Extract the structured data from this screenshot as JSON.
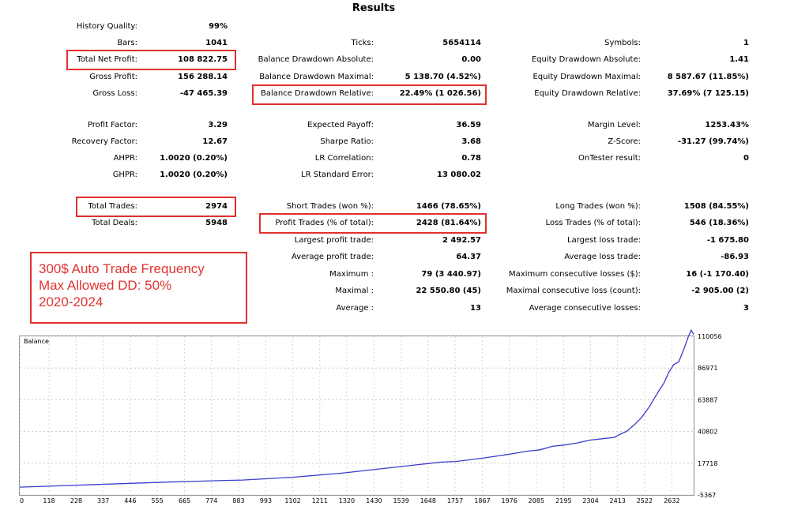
{
  "title": "Results",
  "col1": [
    {
      "label": "History Quality:",
      "value": "99%"
    },
    {
      "label": "Bars:",
      "value": "1041"
    },
    {
      "label": "Total Net Profit:",
      "value": "108 822.75"
    },
    {
      "label": "Gross Profit:",
      "value": "156 288.14"
    },
    {
      "label": "Gross Loss:",
      "value": "-47 465.39"
    },
    {
      "label": "Profit Factor:",
      "value": "3.29"
    },
    {
      "label": "Recovery Factor:",
      "value": "12.67"
    },
    {
      "label": "AHPR:",
      "value": "1.0020 (0.20%)"
    },
    {
      "label": "GHPR:",
      "value": "1.0020 (0.20%)"
    },
    {
      "label": "Total Trades:",
      "value": "2974"
    },
    {
      "label": "Total Deals:",
      "value": "5948"
    }
  ],
  "col2": [
    {
      "label": "Ticks:",
      "value": "5654114"
    },
    {
      "label": "Balance Drawdown Absolute:",
      "value": "0.00"
    },
    {
      "label": "Balance Drawdown Maximal:",
      "value": "5 138.70 (4.52%)"
    },
    {
      "label": "Balance Drawdown Relative:",
      "value": "22.49% (1 026.56)"
    },
    {
      "label": "Expected Payoff:",
      "value": "36.59"
    },
    {
      "label": "Sharpe Ratio:",
      "value": "3.68"
    },
    {
      "label": "LR Correlation:",
      "value": "0.78"
    },
    {
      "label": "LR Standard Error:",
      "value": "13 080.02"
    },
    {
      "label": "Short Trades (won %):",
      "value": "1466 (78.65%)"
    },
    {
      "label": "Profit Trades (% of total):",
      "value": "2428 (81.64%)"
    },
    {
      "label": "Largest profit trade:",
      "value": "2 492.57"
    },
    {
      "label": "Average profit trade:",
      "value": "64.37"
    },
    {
      "label": "Maximum :",
      "value": "79 (3 440.97)"
    },
    {
      "label": "Maximal :",
      "value": "22 550.80 (45)"
    },
    {
      "label": "Average :",
      "value": "13"
    }
  ],
  "col3": [
    {
      "label": "Symbols:",
      "value": "1"
    },
    {
      "label": "Equity Drawdown Absolute:",
      "value": "1.41"
    },
    {
      "label": "Equity Drawdown Maximal:",
      "value": "8 587.67 (11.85%)"
    },
    {
      "label": "Equity Drawdown Relative:",
      "value": "37.69% (7 125.15)"
    },
    {
      "label": "Margin Level:",
      "value": "1253.43%"
    },
    {
      "label": "Z-Score:",
      "value": "-31.27 (99.74%)"
    },
    {
      "label": "OnTester result:",
      "value": "0"
    },
    {
      "label": "Long Trades (won %):",
      "value": "1508 (84.55%)"
    },
    {
      "label": "Loss Trades (% of total):",
      "value": "546 (18.36%)"
    },
    {
      "label": "Largest loss trade:",
      "value": "-1 675.80"
    },
    {
      "label": "Average loss trade:",
      "value": "-86.93"
    },
    {
      "label": "Maximum consecutive losses ($):",
      "value": "16 (-1 170.40)"
    },
    {
      "label": "Maximal consecutive loss (count):",
      "value": "-2 905.00 (2)"
    },
    {
      "label": "Average consecutive losses:",
      "value": "3"
    }
  ],
  "note": {
    "line1": "300$ Auto Trade Frequency",
    "line2": "Max Allowed DD: 50%",
    "line3": "2020-2024"
  },
  "colors": {
    "highlight": "#e0302f",
    "note_text": "#e23331",
    "balance_line": "#3c3ccc"
  },
  "chart_data": {
    "type": "line",
    "title": "Balance",
    "x_ticks": [
      "0",
      "118",
      "228",
      "337",
      "446",
      "555",
      "665",
      "774",
      "883",
      "993",
      "1102",
      "1211",
      "1320",
      "1430",
      "1539",
      "1648",
      "1757",
      "1867",
      "1976",
      "2085",
      "2195",
      "2304",
      "2413",
      "2522",
      "2632"
    ],
    "y_ticks": [
      "110056",
      "86971",
      "63887",
      "40802",
      "17718",
      "-5367"
    ],
    "ylim": [
      -5367,
      110056
    ],
    "xlim": [
      0,
      2720
    ],
    "series": [
      {
        "values": [
          [
            0,
            300
          ],
          [
            200,
            1500
          ],
          [
            400,
            2800
          ],
          [
            600,
            4000
          ],
          [
            800,
            5000
          ],
          [
            900,
            5500
          ],
          [
            1100,
            7500
          ],
          [
            1300,
            10500
          ],
          [
            1500,
            14500
          ],
          [
            1600,
            16500
          ],
          [
            1650,
            17500
          ],
          [
            1700,
            18500
          ],
          [
            1760,
            19000
          ],
          [
            1850,
            21000
          ],
          [
            1950,
            23500
          ],
          [
            2000,
            25000
          ],
          [
            2050,
            26500
          ],
          [
            2100,
            27500
          ],
          [
            2150,
            30000
          ],
          [
            2200,
            31000
          ],
          [
            2250,
            32500
          ],
          [
            2300,
            34500
          ],
          [
            2350,
            35500
          ],
          [
            2400,
            36500
          ],
          [
            2420,
            38500
          ],
          [
            2450,
            41000
          ],
          [
            2480,
            45500
          ],
          [
            2510,
            51000
          ],
          [
            2540,
            58500
          ],
          [
            2560,
            64500
          ],
          [
            2580,
            70500
          ],
          [
            2600,
            76000
          ],
          [
            2620,
            84000
          ],
          [
            2640,
            89500
          ],
          [
            2660,
            91500
          ],
          [
            2680,
            100500
          ],
          [
            2700,
            110500
          ],
          [
            2710,
            114500
          ],
          [
            2720,
            111500
          ]
        ]
      }
    ]
  }
}
